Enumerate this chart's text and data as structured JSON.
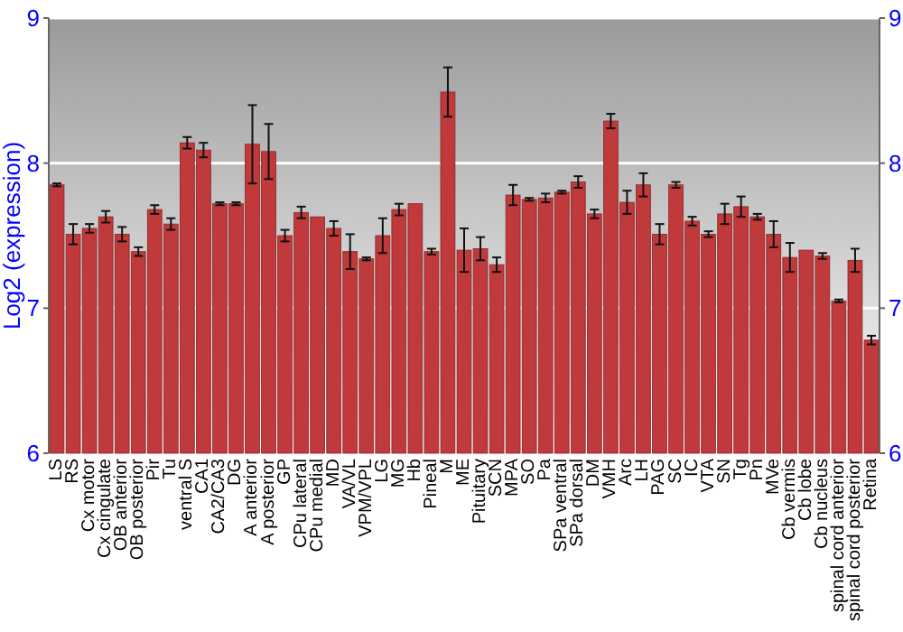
{
  "chart_data": {
    "type": "bar",
    "ylabel": "Log2 (expression)",
    "categories": [
      "LS",
      "RS",
      "Cx motor",
      "Cx cingulate",
      "OB anterior",
      "OB posterior",
      "Pir",
      "Tu",
      "ventral S",
      "CA1",
      "CA2/CA3",
      "DG",
      "A anterior",
      "A posterior",
      "GP",
      "CPu lateral",
      "CPu medial",
      "MD",
      "VA/VL",
      "VPM/VPL",
      "LG",
      "MG",
      "Hb",
      "Pineal",
      "M",
      "ME",
      "Pituitary",
      "SCN",
      "MPA",
      "SO",
      "Pa",
      "SPa ventral",
      "SPa dorsal",
      "DM",
      "VMH",
      "Arc",
      "LH",
      "PAG",
      "SC",
      "IC",
      "VTA",
      "SN",
      "Tg",
      "Pn",
      "MVe",
      "Cb vermis",
      "Cb lobe",
      "Cb nucleus",
      "spinal cord anterior",
      "spinal cord posterior",
      "Retina"
    ],
    "values": [
      7.85,
      7.51,
      7.55,
      7.63,
      7.51,
      7.39,
      7.68,
      7.58,
      8.14,
      8.09,
      7.72,
      7.72,
      8.13,
      8.08,
      7.5,
      7.66,
      7.63,
      7.55,
      7.39,
      7.34,
      7.5,
      7.68,
      7.72,
      7.39,
      8.49,
      7.4,
      7.41,
      7.3,
      7.78,
      7.75,
      7.76,
      7.8,
      7.87,
      7.65,
      8.29,
      7.73,
      7.85,
      7.51,
      7.85,
      7.6,
      7.51,
      7.65,
      7.7,
      7.63,
      7.51,
      7.35,
      7.4,
      7.36,
      7.05,
      7.33,
      6.78
    ],
    "errors": [
      0.01,
      0.07,
      0.03,
      0.04,
      0.05,
      0.03,
      0.03,
      0.04,
      0.04,
      0.05,
      0.01,
      0.01,
      0.27,
      0.19,
      0.04,
      0.04,
      null,
      0.05,
      0.12,
      0.01,
      0.12,
      0.04,
      null,
      0.02,
      0.17,
      0.15,
      0.08,
      0.05,
      0.07,
      0.01,
      0.03,
      0.01,
      0.04,
      0.03,
      0.05,
      0.08,
      0.08,
      0.07,
      0.02,
      0.03,
      0.02,
      0.07,
      0.07,
      0.02,
      0.09,
      0.1,
      null,
      0.02,
      0.01,
      0.08,
      0.03
    ],
    "color": "#c0393b",
    "ylim": [
      6,
      9
    ],
    "yticks": [
      6,
      7,
      8,
      9
    ],
    "y2lim": [
      6,
      9
    ],
    "y2ticks": [
      6,
      7,
      8,
      9
    ],
    "grid": "y"
  }
}
